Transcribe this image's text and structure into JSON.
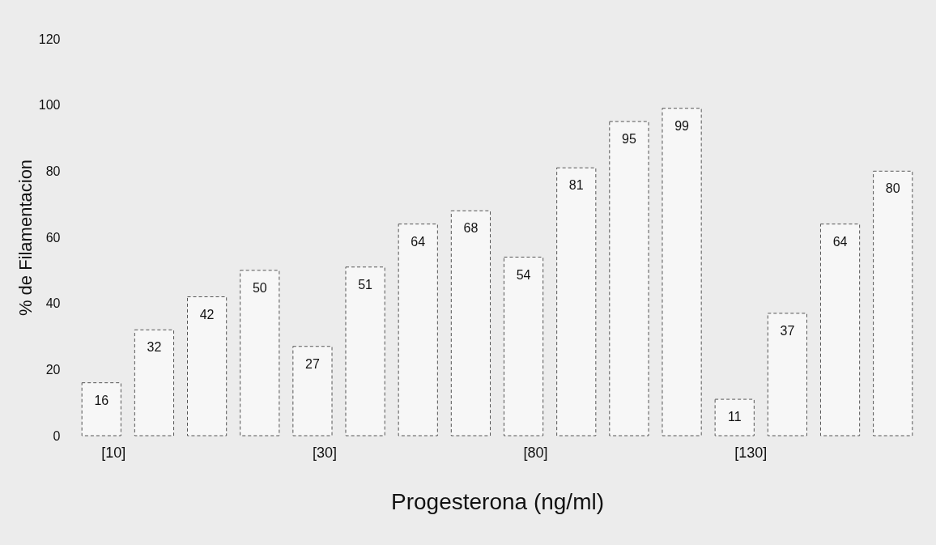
{
  "chart_data": {
    "type": "bar",
    "xlabel": "Progesterona (ng/ml)",
    "ylabel": "% de Filamentacion",
    "categories": [
      "[10]",
      null,
      null,
      null,
      "[30]",
      null,
      null,
      null,
      "[80]",
      null,
      null,
      null,
      "[130]",
      null,
      null,
      null
    ],
    "values": [
      16,
      32,
      42,
      50,
      27,
      51,
      64,
      68,
      54,
      81,
      95,
      99,
      11,
      37,
      64,
      80
    ],
    "color": "#f7f7f7",
    "line_style": "dashed",
    "data_labels": true,
    "ylim": [
      0,
      120
    ],
    "yticks": [
      0,
      20,
      40,
      60,
      80,
      100,
      120
    ],
    "grid": false
  }
}
